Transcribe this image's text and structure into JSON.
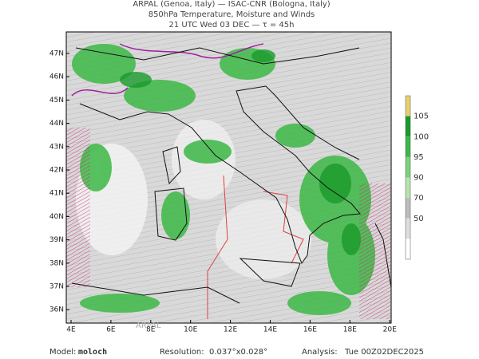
{
  "header": {
    "lines": [
      "ARPAL (Genoa, Italy)  —  ISAC-CNR (Bologna, Italy)",
      "850hPa Temperature, Moisture and Winds",
      "21 UTC Wed 03 DEC  —  τ = 45h"
    ]
  },
  "map": {
    "lat_labels": [
      "47N",
      "46N",
      "45N",
      "44N",
      "43N",
      "42N",
      "41N",
      "40N",
      "39N",
      "38N",
      "37N",
      "36N"
    ],
    "lon_labels": [
      "4E",
      "6E",
      "8E",
      "10E",
      "12E",
      "14E",
      "16E",
      "18E",
      "20E"
    ],
    "watermark": "ARPAL"
  },
  "colorbar": {
    "labels": [
      "105",
      "100",
      "95",
      "90",
      "70",
      "50"
    ],
    "colors": [
      "#e8d070",
      "#1a9a2a",
      "#3cb846",
      "#7dd27d",
      "#b6e3b0",
      "#bdbdbd",
      "#dedede",
      "#ffffff"
    ]
  },
  "footer": {
    "model_label": "Model:",
    "model": "moloch",
    "resolution_label": "Resolution:",
    "resolution": "0.037°x0.028°",
    "analysis_label": "Analysis:",
    "analysis": "Tue 00Z02DEC2025"
  }
}
